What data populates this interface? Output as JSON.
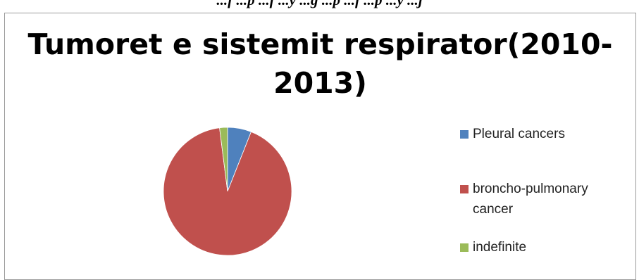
{
  "caption": "...f ...p ...f ...y ...g ...p ...f ...p ...y ...j",
  "chart_data": {
    "type": "pie",
    "title": "Tumoret e sistemit respirator(2010-2013)",
    "title_lines": [
      "Tumoret e sistemit respirator(2010-",
      "2013)"
    ],
    "categories": [
      "Pleural cancers",
      "broncho-pulmonary cancer",
      "indefinite"
    ],
    "values": [
      6,
      92,
      2
    ],
    "legend_position": "right",
    "legend_lines": [
      [
        "Pleural cancers"
      ],
      [
        "broncho-pulmonary",
        "cancer"
      ],
      [
        "indefinite"
      ]
    ],
    "colors": [
      "#4F81BD",
      "#C0504D",
      "#9BBB59"
    ]
  }
}
